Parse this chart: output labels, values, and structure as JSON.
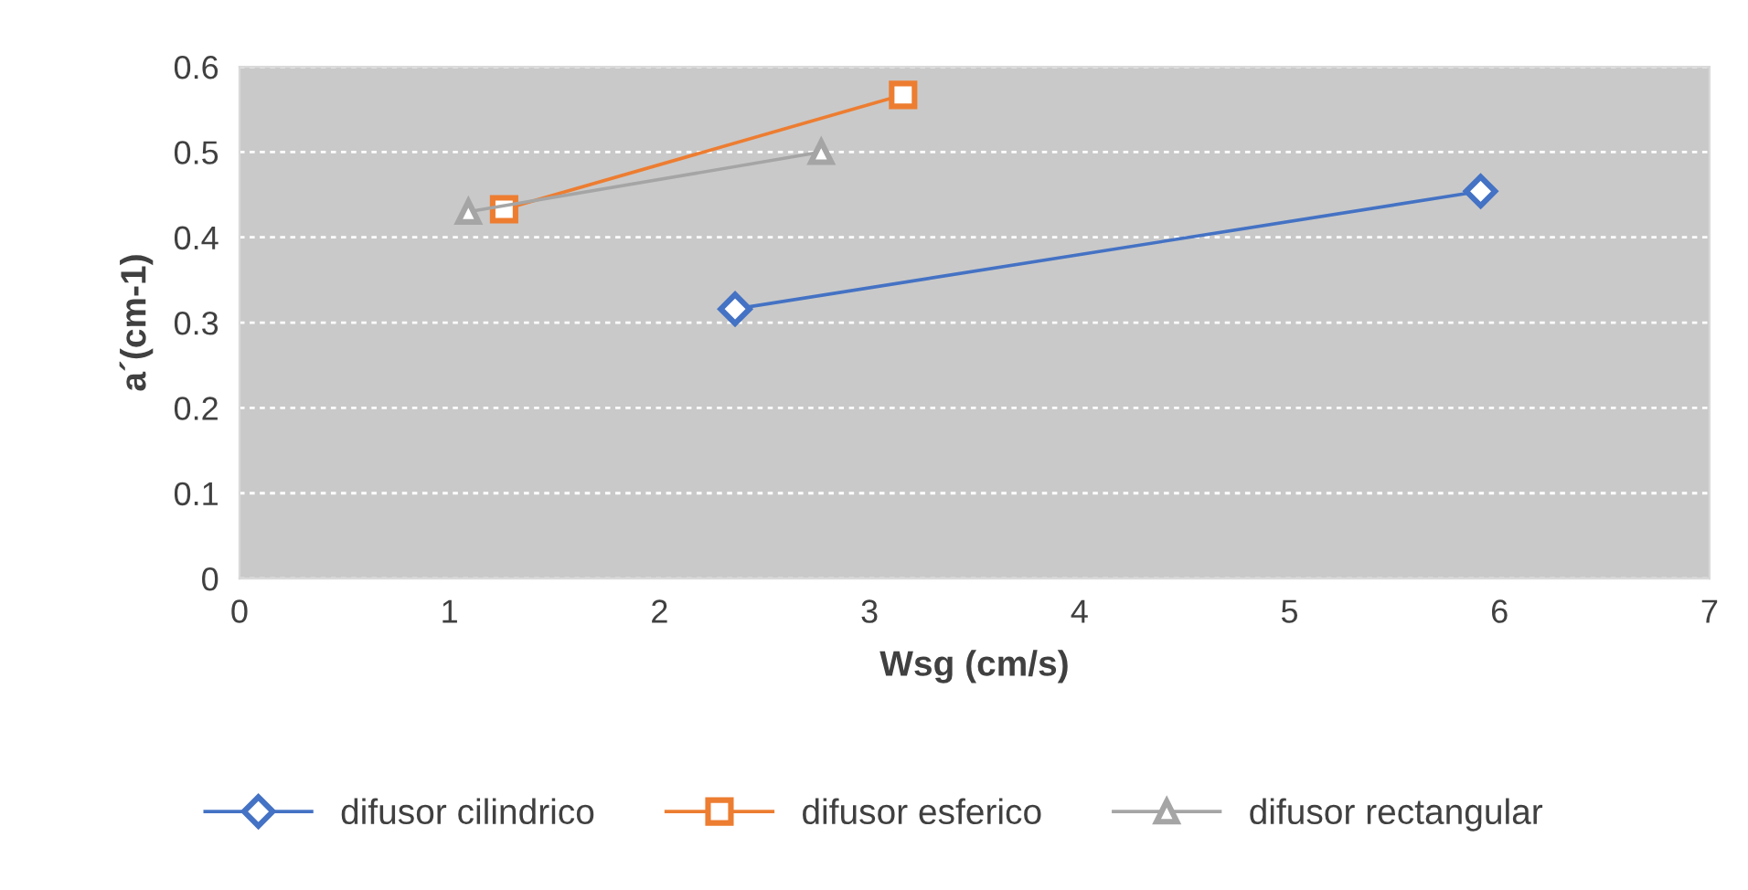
{
  "chart_data": {
    "type": "line",
    "xlabel": "Wsg (cm/s)",
    "ylabel": "a´(cm-1)",
    "xlim": [
      0,
      7
    ],
    "xticks": [
      0,
      1,
      2,
      3,
      4,
      5,
      6,
      7
    ],
    "ylim": [
      0,
      0.6
    ],
    "yticks": [
      0,
      0.1,
      0.2,
      0.3,
      0.4,
      0.5,
      0.6
    ],
    "grid": "y",
    "legend": "bottom",
    "series": [
      {
        "name": "difusor cilindrico",
        "color": "#4472c4",
        "marker": "diamond",
        "x": [
          2.36,
          5.91
        ],
        "values": [
          0.316,
          0.454
        ]
      },
      {
        "name": "difusor esferico",
        "color": "#ed7d31",
        "marker": "square",
        "x": [
          1.26,
          3.16
        ],
        "values": [
          0.433,
          0.567
        ]
      },
      {
        "name": "difusor rectangular",
        "color": "#a5a5a5",
        "marker": "triangle",
        "x": [
          1.09,
          2.77
        ],
        "values": [
          0.43,
          0.5
        ]
      }
    ]
  }
}
